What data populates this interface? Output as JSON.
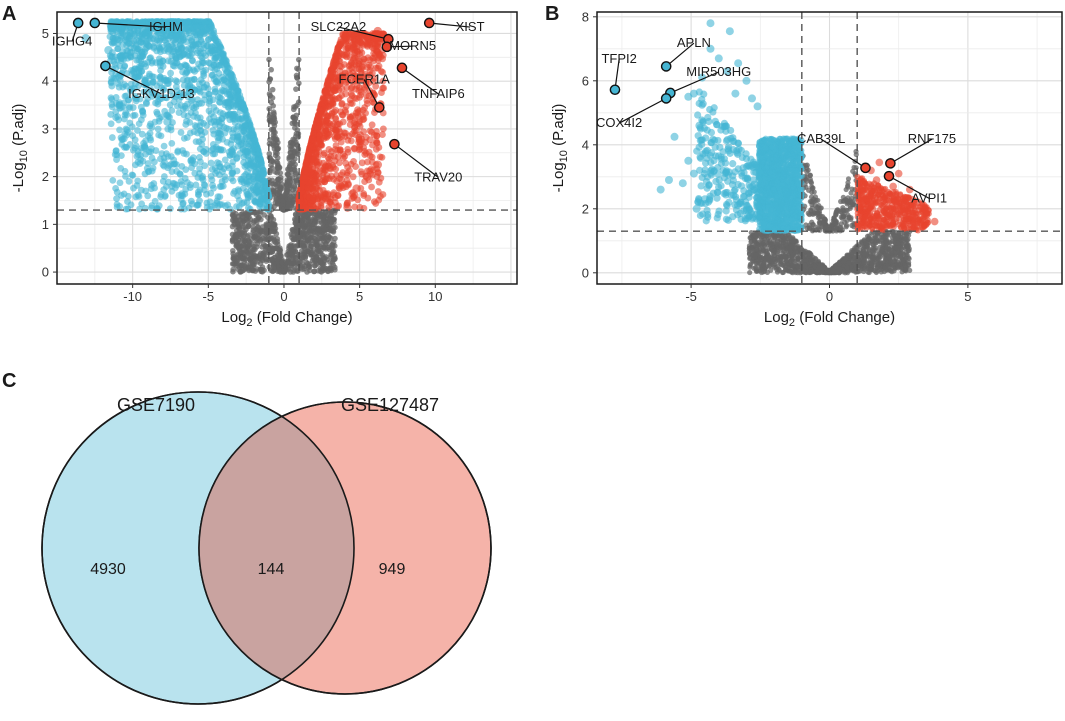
{
  "panels": {
    "a": "A",
    "b": "B",
    "c": "C"
  },
  "colors": {
    "up": "#e8442e",
    "down": "#45b5d3",
    "ns": "#666666",
    "up_light": "#ee7a66",
    "down_light": "#7ccbe2",
    "venn_left": "#b9e3ee",
    "venn_right": "#f5b3a9",
    "venn_overlap": "#c9a3a0"
  },
  "chart_data": [
    {
      "type": "scatter",
      "name": "Volcano plot A",
      "title": "",
      "xlabel": {
        "main": "Log",
        "sub": "2",
        "rest": " (Fold Change)"
      },
      "ylabel": {
        "main": "-Log",
        "sub": "10",
        "rest": " (P.adj)"
      },
      "xlim": [
        -15,
        15.4
      ],
      "ylim": [
        -0.25,
        5.45
      ],
      "xticks": [
        -10,
        -5,
        0,
        5,
        10
      ],
      "yticks": [
        0,
        1,
        2,
        3,
        4,
        5
      ],
      "fc_cutoffs": [
        -1,
        1
      ],
      "p_cutoff": 1.3,
      "highlighted": [
        {
          "gene": "IGHG4",
          "x": -13.6,
          "y": 5.22,
          "group": "down",
          "label_x": -14,
          "label_y": 4.75
        },
        {
          "gene": "IGHM",
          "x": -12.5,
          "y": 5.22,
          "group": "down",
          "label_x": -7.8,
          "label_y": 5.05
        },
        {
          "gene": "IGKV1D-13",
          "x": -11.8,
          "y": 4.32,
          "group": "down",
          "label_x": -8.1,
          "label_y": 3.65
        },
        {
          "gene": "XIST",
          "x": 9.6,
          "y": 5.22,
          "group": "up",
          "label_x": 12.3,
          "label_y": 5.05
        },
        {
          "gene": "SLC22A2",
          "x": 6.9,
          "y": 4.88,
          "group": "up",
          "label_x": 3.6,
          "label_y": 5.05
        },
        {
          "gene": "MORN5",
          "x": 6.8,
          "y": 4.72,
          "group": "up",
          "label_x": 8.5,
          "label_y": 4.65
        },
        {
          "gene": "TNFAIP6",
          "x": 7.8,
          "y": 4.28,
          "group": "up",
          "label_x": 10.2,
          "label_y": 3.65
        },
        {
          "gene": "FCER1A",
          "x": 6.3,
          "y": 3.45,
          "group": "up",
          "label_x": 5.3,
          "label_y": 3.95
        },
        {
          "gene": "TRAV20",
          "x": 7.3,
          "y": 2.68,
          "group": "up",
          "label_x": 10.2,
          "label_y": 1.9
        }
      ]
    },
    {
      "type": "scatter",
      "name": "Volcano plot B",
      "title": "",
      "xlabel": {
        "main": "Log",
        "sub": "2",
        "rest": " (Fold Change)"
      },
      "ylabel": {
        "main": "-Log",
        "sub": "10",
        "rest": " (P.adj)"
      },
      "xlim": [
        -8.4,
        8.4
      ],
      "ylim": [
        -0.35,
        8.15
      ],
      "xticks": [
        -5,
        0,
        5
      ],
      "yticks": [
        0,
        2,
        4,
        6,
        8
      ],
      "fc_cutoffs": [
        -1,
        1
      ],
      "p_cutoff": 1.3,
      "highlighted": [
        {
          "gene": "APLN",
          "x": -5.9,
          "y": 6.45,
          "group": "down",
          "label_x": -4.9,
          "label_y": 7.05
        },
        {
          "gene": "TFPI2",
          "x": -7.75,
          "y": 5.72,
          "group": "down",
          "label_x": -7.6,
          "label_y": 6.55
        },
        {
          "gene": "MIR503HG",
          "x": -5.75,
          "y": 5.62,
          "group": "down",
          "label_x": -4.0,
          "label_y": 6.15
        },
        {
          "gene": "COX4I2",
          "x": -5.9,
          "y": 5.45,
          "group": "down",
          "label_x": -7.6,
          "label_y": 4.55
        },
        {
          "gene": "CAB39L",
          "x": 1.3,
          "y": 3.28,
          "group": "up",
          "label_x": -0.3,
          "label_y": 4.05
        },
        {
          "gene": "RNF175",
          "x": 2.2,
          "y": 3.42,
          "group": "up",
          "label_x": 3.7,
          "label_y": 4.05
        },
        {
          "gene": "AVPI1",
          "x": 2.15,
          "y": 3.02,
          "group": "up",
          "label_x": 3.6,
          "label_y": 2.2
        }
      ]
    },
    {
      "type": "venn",
      "name": "Venn diagram C",
      "sets": [
        {
          "name": "GSE7190",
          "only": 4930
        },
        {
          "name": "GSE127487",
          "only": 949
        }
      ],
      "overlap": 144
    }
  ]
}
